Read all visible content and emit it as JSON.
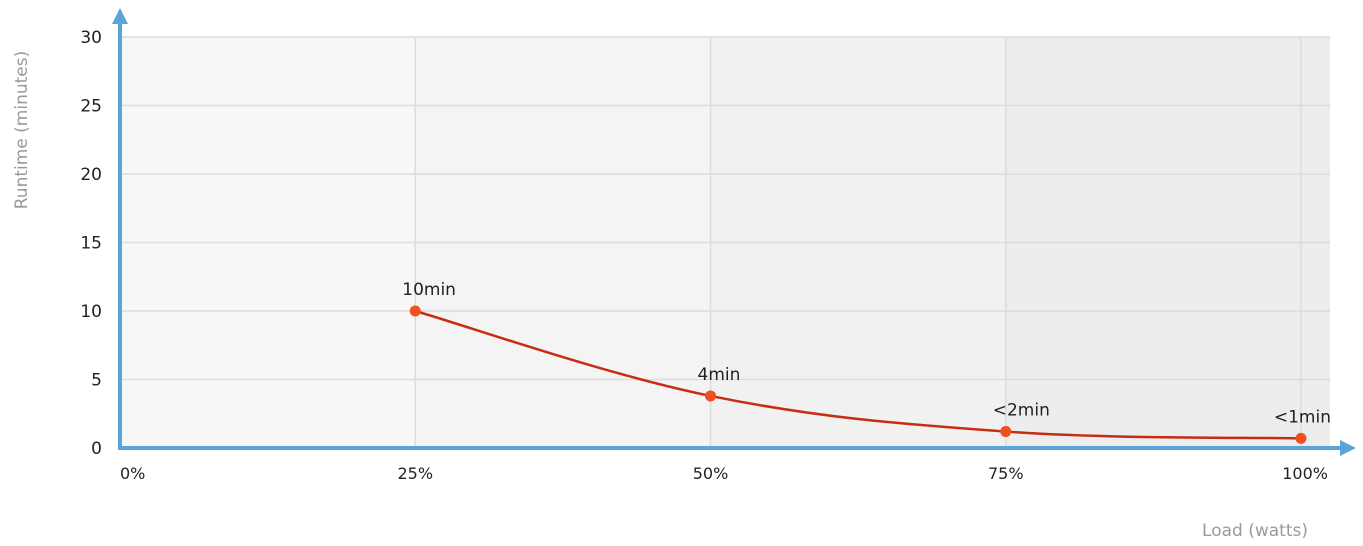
{
  "chart_data": {
    "type": "line",
    "title": "",
    "xlabel": "Load (watts)",
    "ylabel": "Runtime (minutes)",
    "x_ticks": [
      "0%",
      "25%",
      "50%",
      "75%",
      "100%"
    ],
    "x_range": [
      0,
      100
    ],
    "ylim": [
      0,
      30
    ],
    "y_ticks": [
      0,
      5,
      10,
      15,
      20,
      25,
      30
    ],
    "grid": true,
    "legend": "none",
    "series": [
      {
        "x": [
          25,
          50,
          75,
          100
        ],
        "values": [
          10,
          3.8,
          1.2,
          0.7
        ],
        "labels": [
          "10min",
          "4min",
          "<2min",
          "<1min"
        ]
      }
    ],
    "colors": {
      "line": "#c62d12",
      "point": "#f0501e",
      "axis": "#5aa5d8",
      "grid": "#dcdcdc",
      "band_fills": [
        "#f7f7f7",
        "#f4f4f4",
        "#f1f1f1",
        "#ededed"
      ]
    }
  }
}
